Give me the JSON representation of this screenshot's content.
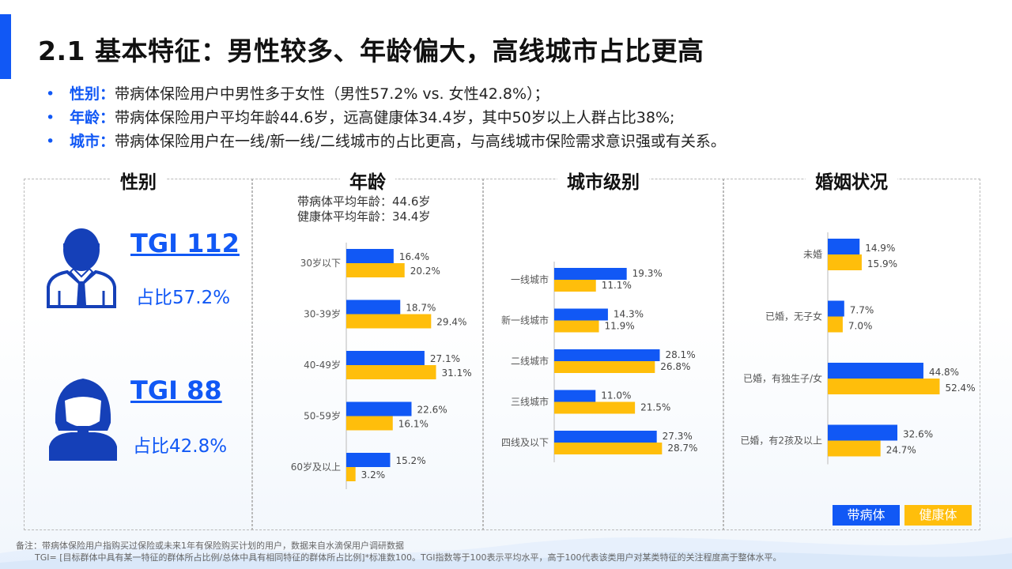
{
  "title": "2.1 基本特征：男性较多、年龄偏大，高线城市占比更高",
  "bullets": [
    {
      "dot": "•",
      "key": "性别：",
      "text": "带病体保险用户中男性多于女性（男性57.2% vs. 女性42.8%）；"
    },
    {
      "dot": "•",
      "key": "年龄：",
      "text": "带病体保险用户平均年龄44.6岁，远高健康体34.4岁，其中50岁以上人群占比38%;"
    },
    {
      "dot": "•",
      "key": "城市：",
      "text": "带病体保险用户在一线/新一线/二线城市的占比更高，与高线城市保险需求意识强或有关系。"
    }
  ],
  "panels": {
    "gender": {
      "title": "性别",
      "male": {
        "tgi": "TGI 112",
        "share": "占比57.2%"
      },
      "female": {
        "tgi": "TGI  88",
        "share": "占比42.8%"
      }
    },
    "age": {
      "title": "年龄",
      "avg_sick": "带病体平均年龄：44.6岁",
      "avg_health": "健康体平均年龄：34.4岁"
    },
    "city": {
      "title": "城市级别"
    },
    "marriage": {
      "title": "婚姻状况"
    }
  },
  "legend": {
    "sick": "带病体",
    "health": "健康体"
  },
  "colors": {
    "sick": "#1158f5",
    "health": "#ffbe0b",
    "accent": "#1158f5"
  },
  "footnotes": {
    "line1": "备注：带病体保险用户指购买过保险或未来1年有保险购买计划的用户，数据来自水滴保用户调研数据",
    "line2": "TGI= [目标群体中具有某一特征的群体所占比例/总体中具有相同特征的群体所占比例]*标准数100。TGI指数等于100表示平均水平，高于100代表该类用户对某类特征的关注程度高于整体水平。"
  },
  "chart_data": [
    {
      "type": "bar",
      "title": "年龄",
      "categories": [
        "30岁以下",
        "30-39岁",
        "40-49岁",
        "50-59岁",
        "60岁及以上"
      ],
      "series": [
        {
          "name": "带病体",
          "values": [
            16.4,
            18.7,
            27.1,
            22.6,
            15.2
          ],
          "labels": [
            "16.4%",
            "18.7%",
            "27.1%",
            "22.6%",
            "15.2%"
          ]
        },
        {
          "name": "健康体",
          "values": [
            20.2,
            29.4,
            31.1,
            16.1,
            3.2
          ],
          "labels": [
            "20.2%",
            "29.4%",
            "31.1%",
            "16.1%",
            "3.2%"
          ]
        }
      ]
    },
    {
      "type": "bar",
      "title": "城市级别",
      "categories": [
        "一线城市",
        "新一线城市",
        "二线城市",
        "三线城市",
        "四线及以下"
      ],
      "series": [
        {
          "name": "带病体",
          "values": [
            19.3,
            14.3,
            28.1,
            11.0,
            27.3
          ],
          "labels": [
            "19.3%",
            "14.3%",
            "28.1%",
            "11.0%",
            "27.3%"
          ]
        },
        {
          "name": "健康体",
          "values": [
            11.1,
            11.9,
            26.8,
            21.5,
            28.7
          ],
          "labels": [
            "11.1%",
            "11.9%",
            "26.8%",
            "21.5%",
            "28.7%"
          ]
        }
      ]
    },
    {
      "type": "bar",
      "title": "婚姻状况",
      "categories": [
        "未婚",
        "已婚，无子女",
        "已婚，有独生子/女",
        "已婚，有2孩及以上"
      ],
      "series": [
        {
          "name": "带病体",
          "values": [
            14.9,
            7.7,
            44.8,
            32.6
          ],
          "labels": [
            "14.9%",
            "7.7%",
            "44.8%",
            "32.6%"
          ]
        },
        {
          "name": "健康体",
          "values": [
            15.9,
            7.0,
            52.4,
            24.7
          ],
          "labels": [
            "15.9%",
            "7.0%",
            "52.4%",
            "24.7%"
          ]
        }
      ]
    }
  ]
}
